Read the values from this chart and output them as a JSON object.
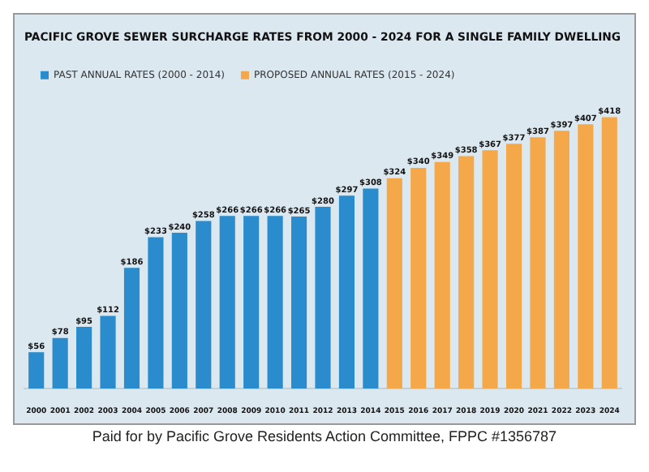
{
  "chart_data": {
    "type": "bar",
    "title": "PACIFIC GROVE SEWER SURCHARGE RATES FROM 2000 - 2024 FOR A SINGLE FAMILY DWELLING",
    "categories": [
      "2000",
      "2001",
      "2002",
      "2003",
      "2004",
      "2005",
      "2006",
      "2007",
      "2008",
      "2009",
      "2010",
      "2011",
      "2012",
      "2013",
      "2014",
      "2015",
      "2016",
      "2017",
      "2018",
      "2019",
      "2020",
      "2021",
      "2022",
      "2023",
      "2024"
    ],
    "series": [
      {
        "name": "PAST ANNUAL RATES (2000 - 2014)",
        "color": "#2a8ccc",
        "values": [
          56,
          78,
          95,
          112,
          186,
          233,
          240,
          258,
          266,
          266,
          266,
          265,
          280,
          297,
          308,
          null,
          null,
          null,
          null,
          null,
          null,
          null,
          null,
          null,
          null
        ],
        "value_labels": [
          "$56",
          "$78",
          "$95",
          "$112",
          "$186",
          "$233",
          "$240",
          "$258",
          "$266",
          "$266",
          "$266",
          "$265",
          "$280",
          "$297",
          "$308",
          null,
          null,
          null,
          null,
          null,
          null,
          null,
          null,
          null,
          null
        ]
      },
      {
        "name": "PROPOSED ANNUAL RATES (2015 - 2024)",
        "color": "#f5a84a",
        "values": [
          null,
          null,
          null,
          null,
          null,
          null,
          null,
          null,
          null,
          null,
          null,
          null,
          null,
          null,
          null,
          324,
          340,
          349,
          358,
          367,
          377,
          387,
          397,
          407,
          418
        ],
        "value_labels": [
          null,
          null,
          null,
          null,
          null,
          null,
          null,
          null,
          null,
          null,
          null,
          null,
          null,
          null,
          null,
          "$324",
          "$340",
          "$349",
          "$358",
          "$367",
          "$377",
          "$387",
          "$397",
          "$407",
          "$418"
        ]
      }
    ],
    "legend": "top left",
    "grid": false,
    "annotations": [
      "Paid for by Pacific Grove Residents Action Committee, FPPC #1356787"
    ]
  }
}
